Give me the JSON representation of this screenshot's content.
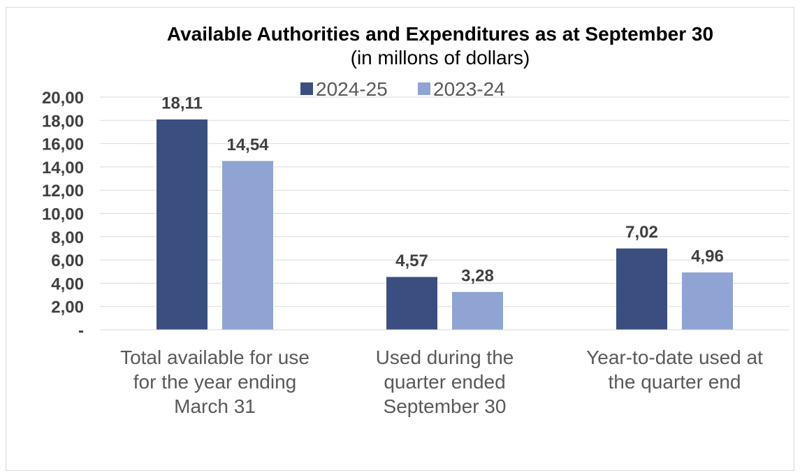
{
  "chart_data": {
    "type": "bar",
    "title": "Available Authorities and Expenditures as at September 30",
    "subtitle": "(in millons of dollars)",
    "categories": [
      [
        "Total available for use",
        "for the year ending",
        "March 31"
      ],
      [
        "Used during the",
        "quarter ended",
        "September 30"
      ],
      [
        "Year-to-date used at",
        "the quarter end"
      ]
    ],
    "series": [
      {
        "name": "2024-25",
        "color": "#3a4e80",
        "values": [
          18.11,
          4.57,
          7.02
        ],
        "labels": [
          "18,11",
          "4,57",
          "7,02"
        ]
      },
      {
        "name": "2023-24",
        "color": "#8fa4d2",
        "values": [
          14.54,
          3.28,
          4.96
        ],
        "labels": [
          "14,54",
          "3,28",
          "4,96"
        ]
      }
    ],
    "yticks": [
      {
        "value": 0,
        "label": "-"
      },
      {
        "value": 2,
        "label": "2,00"
      },
      {
        "value": 4,
        "label": "4,00"
      },
      {
        "value": 6,
        "label": "6,00"
      },
      {
        "value": 8,
        "label": "8,00"
      },
      {
        "value": 10,
        "label": "10,00"
      },
      {
        "value": 12,
        "label": "12,00"
      },
      {
        "value": 14,
        "label": "14,00"
      },
      {
        "value": 16,
        "label": "16,00"
      },
      {
        "value": 18,
        "label": "18,00"
      },
      {
        "value": 20,
        "label": "20,00"
      }
    ],
    "ylim": [
      0,
      20
    ],
    "grid": true,
    "legend_position": "top"
  }
}
